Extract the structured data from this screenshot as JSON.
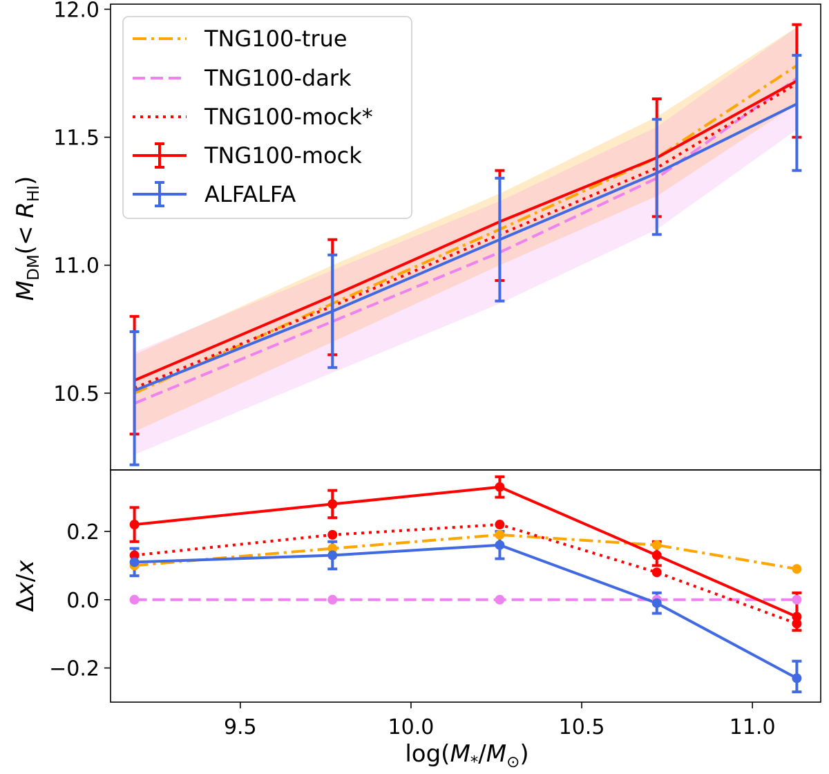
{
  "chart_data": [
    {
      "type": "line",
      "panel": "top",
      "ylabel": "M_DM(< R_HI)",
      "ylabel_parts": {
        "M": "M",
        "sub": "DM",
        "mid": "(< ",
        "R": "R",
        "rsub": "HI",
        "close": ")"
      },
      "xlim": [
        9.12,
        11.2
      ],
      "ylim": [
        10.2,
        12.02
      ],
      "yticks": [
        "10.5",
        "11.0",
        "11.5",
        "12.0"
      ],
      "ytick_values": [
        10.5,
        11.0,
        11.5,
        12.0
      ],
      "x": [
        9.19,
        9.77,
        10.26,
        10.72,
        11.13
      ],
      "series": [
        {
          "name": "TNG100-true",
          "color": "#ffa500",
          "style": "dashdot",
          "values": [
            10.5,
            10.85,
            11.14,
            11.42,
            11.78
          ],
          "band": [
            [
              10.35,
              10.65
            ],
            [
              10.7,
              11.0
            ],
            [
              11.0,
              11.28
            ],
            [
              11.27,
              11.58
            ],
            [
              11.63,
              11.93
            ]
          ]
        },
        {
          "name": "TNG100-dark",
          "color": "#ee82ee",
          "style": "dashed",
          "values": [
            10.46,
            10.78,
            11.05,
            11.34,
            11.73
          ],
          "band": [
            [
              10.26,
              10.66
            ],
            [
              10.58,
              10.98
            ],
            [
              10.85,
              11.25
            ],
            [
              11.14,
              11.54
            ],
            [
              11.53,
              11.93
            ]
          ]
        },
        {
          "name": "TNG100-mock*",
          "color": "#ff0000",
          "style": "dotted",
          "values": [
            10.52,
            10.84,
            11.12,
            11.38,
            11.71
          ]
        },
        {
          "name": "TNG100-mock",
          "color": "#ff0000",
          "style": "solid",
          "values": [
            10.55,
            10.88,
            11.17,
            11.42,
            11.72
          ],
          "err_low": [
            10.34,
            10.65,
            10.94,
            11.19,
            11.5
          ],
          "err_high": [
            10.8,
            11.1,
            11.37,
            11.65,
            11.94
          ]
        },
        {
          "name": "ALFALFA",
          "color": "#4169e1",
          "style": "solid",
          "values": [
            10.51,
            10.82,
            11.1,
            11.36,
            11.63
          ],
          "err_low": [
            10.22,
            10.6,
            10.86,
            11.12,
            11.37
          ],
          "err_high": [
            10.74,
            11.04,
            11.34,
            11.57,
            11.82
          ]
        }
      ],
      "legend": {
        "placement": "top-left",
        "entries": [
          "TNG100-true",
          "TNG100-dark",
          "TNG100-mock*",
          "TNG100-mock",
          "ALFALFA"
        ]
      }
    },
    {
      "type": "line",
      "panel": "bottom",
      "ylabel": "Δx/x",
      "ylabel_parts": {
        "delta": "Δ",
        "x1": "x",
        "slash": "/",
        "x2": "x"
      },
      "xlabel": "log(M_*/M_⊙)",
      "xlabel_parts": {
        "open": "log(",
        "M1": "M",
        "sub1": "*",
        "slash": "/",
        "M2": "M",
        "sub2": "⊙",
        "close": ")"
      },
      "xlim": [
        9.12,
        11.2
      ],
      "ylim": [
        -0.3,
        0.38
      ],
      "xticks": [
        "9.5",
        "10.0",
        "10.5",
        "11.0"
      ],
      "xtick_values": [
        9.5,
        10.0,
        10.5,
        11.0
      ],
      "yticks": [
        "−0.2",
        "0.0",
        "0.2"
      ],
      "ytick_values": [
        -0.2,
        0.0,
        0.2
      ],
      "x": [
        9.19,
        9.77,
        10.26,
        10.72,
        11.13
      ],
      "series": [
        {
          "name": "TNG100-true",
          "color": "#ffa500",
          "style": "dashdot",
          "values": [
            0.1,
            0.15,
            0.19,
            0.16,
            0.09
          ]
        },
        {
          "name": "TNG100-dark",
          "color": "#ee82ee",
          "style": "dashed",
          "values": [
            0.0,
            0.0,
            0.0,
            0.0,
            0.0
          ]
        },
        {
          "name": "TNG100-mock*",
          "color": "#ff0000",
          "style": "dotted",
          "values": [
            0.13,
            0.19,
            0.22,
            0.08,
            -0.07
          ]
        },
        {
          "name": "TNG100-mock",
          "color": "#ff0000",
          "style": "solid",
          "values": [
            0.22,
            0.28,
            0.33,
            0.13,
            -0.05
          ],
          "err_low": [
            0.17,
            0.24,
            0.3,
            0.1,
            -0.09
          ],
          "err_high": [
            0.27,
            0.32,
            0.36,
            0.17,
            0.02
          ]
        },
        {
          "name": "ALFALFA",
          "color": "#4169e1",
          "style": "solid",
          "values": [
            0.11,
            0.13,
            0.16,
            -0.01,
            -0.23
          ],
          "err_low": [
            0.07,
            0.09,
            0.12,
            -0.04,
            -0.27
          ],
          "err_high": [
            0.15,
            0.17,
            0.2,
            0.02,
            -0.18
          ]
        }
      ]
    }
  ]
}
